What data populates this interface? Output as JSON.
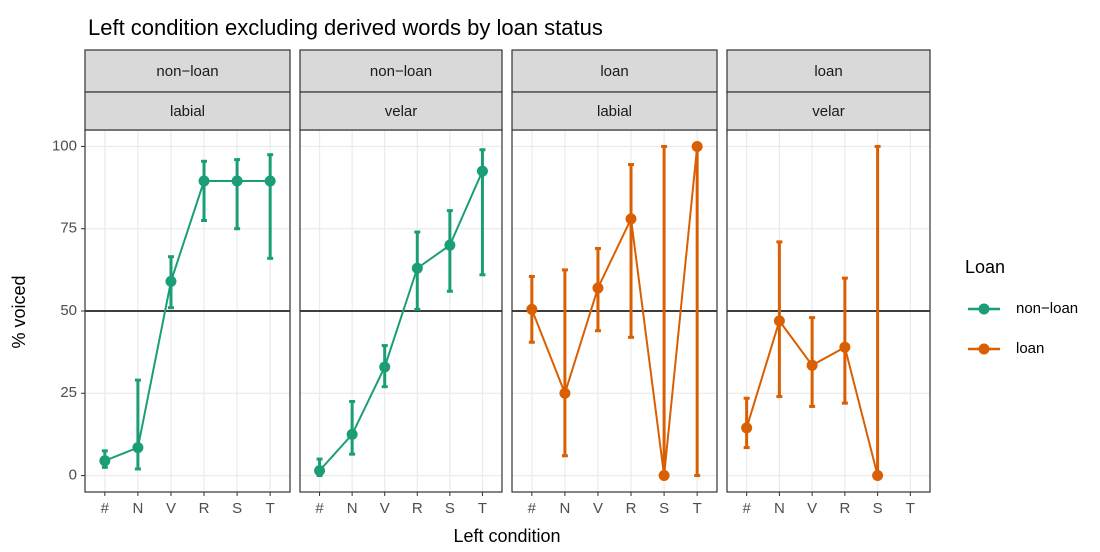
{
  "chart_data": {
    "type": "line",
    "title": "Left condition excluding derived words by loan status",
    "x_label": "Left condition",
    "y_label": "% voiced",
    "legend_title": "Loan",
    "series": [
      {
        "name": "non−loan",
        "color": "#1b9e77"
      },
      {
        "name": "loan",
        "color": "#d95f02"
      }
    ],
    "categories": [
      "#",
      "N",
      "V",
      "R",
      "S",
      "T"
    ],
    "ylim": [
      -5,
      105
    ],
    "yticks": [
      0,
      25,
      50,
      75,
      100
    ],
    "hline": 50,
    "grid": true,
    "facets": [
      {
        "strips": [
          "non−loan",
          "labial"
        ],
        "color": "#1b9e77",
        "values": [
          4.5,
          8.5,
          59,
          89.5,
          89.5,
          89.5
        ],
        "lower": [
          2.5,
          2,
          51,
          77.5,
          75,
          66
        ],
        "upper": [
          7.5,
          29,
          66.5,
          95.5,
          96,
          97.5
        ]
      },
      {
        "strips": [
          "non−loan",
          "velar"
        ],
        "color": "#1b9e77",
        "values": [
          1.5,
          12.5,
          33,
          63,
          70,
          92.5
        ],
        "lower": [
          0,
          6.5,
          27,
          50.5,
          56,
          61
        ],
        "upper": [
          5,
          22.5,
          39.5,
          74,
          80.5,
          99
        ]
      },
      {
        "strips": [
          "loan",
          "labial"
        ],
        "color": "#d95f02",
        "values": [
          50.5,
          25,
          57,
          78,
          0,
          100
        ],
        "lower": [
          40.5,
          6,
          44,
          42,
          0,
          0
        ],
        "upper": [
          60.5,
          62.5,
          69,
          94.5,
          100,
          100
        ]
      },
      {
        "strips": [
          "loan",
          "velar"
        ],
        "color": "#d95f02",
        "values": [
          14.5,
          47,
          33.5,
          39,
          0,
          null
        ],
        "lower": [
          8.5,
          24,
          21,
          22,
          0,
          null
        ],
        "upper": [
          23.5,
          71,
          48,
          60,
          100,
          null
        ]
      }
    ]
  }
}
